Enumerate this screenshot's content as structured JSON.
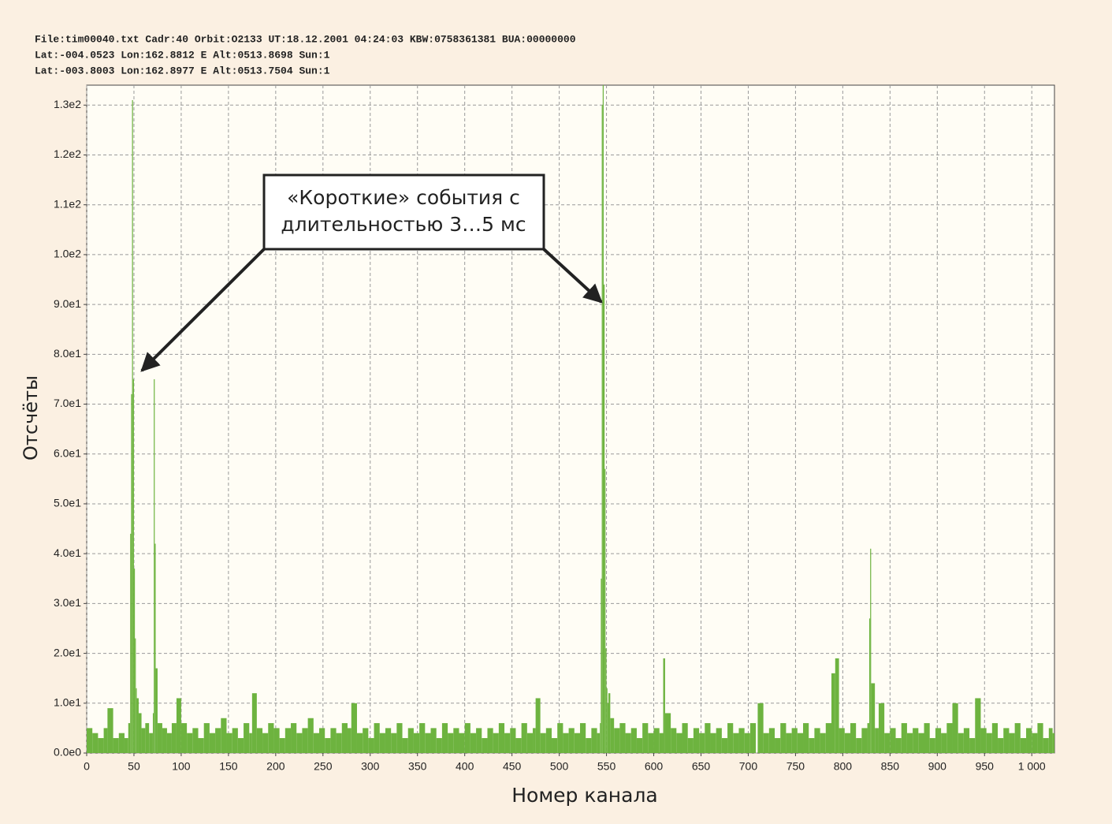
{
  "chart_data": {
    "type": "bar",
    "header": [
      "File:tim00040.txt Cadr:40 Orbit:O2133 UT:18.12.2001 04:24:03 KBW:0758361381 BUA:00000000",
      "Lat:-004.0523 Lon:162.8812 E Alt:0513.8698 Sun:1",
      "Lat:-003.8003 Lon:162.8977 E Alt:0513.7504 Sun:1"
    ],
    "ylabel": "Отсчёты",
    "xlabel": "Номер канала",
    "annotation": [
      "«Короткие» события с",
      "длительностью 3…5 мс"
    ],
    "color": "#6db33f",
    "grid": true,
    "xlim": [
      0,
      1024
    ],
    "ylim": [
      0,
      134
    ],
    "xticks": [
      0,
      50,
      100,
      150,
      200,
      250,
      300,
      350,
      400,
      450,
      500,
      550,
      600,
      650,
      700,
      750,
      800,
      850,
      900,
      950,
      {
        "value": 1000,
        "label": "1 000"
      }
    ],
    "yticks": [
      {
        "value": 0,
        "label": "0.0e0"
      },
      {
        "value": 10,
        "label": "1.0e1"
      },
      {
        "value": 20,
        "label": "2.0e1"
      },
      {
        "value": 30,
        "label": "3.0e1"
      },
      {
        "value": 40,
        "label": "4.0e1"
      },
      {
        "value": 50,
        "label": "5.0e1"
      },
      {
        "value": 60,
        "label": "6.0e1"
      },
      {
        "value": 70,
        "label": "7.0e1"
      },
      {
        "value": 80,
        "label": "8.0e1"
      },
      {
        "value": 90,
        "label": "9.0e1"
      },
      {
        "value": 100,
        "label": "1.0e2"
      },
      {
        "value": 110,
        "label": "1.1e2"
      },
      {
        "value": 120,
        "label": "1.2e2"
      },
      {
        "value": 130,
        "label": "1.3e2"
      }
    ],
    "x": [
      0,
      6,
      12,
      18,
      22,
      28,
      34,
      40,
      44,
      46,
      47,
      48,
      49,
      50,
      51,
      52,
      53,
      55,
      58,
      62,
      66,
      70,
      71,
      72,
      73,
      75,
      80,
      85,
      90,
      95,
      100,
      106,
      112,
      118,
      124,
      130,
      136,
      142,
      148,
      154,
      160,
      166,
      172,
      175,
      180,
      186,
      192,
      198,
      204,
      210,
      216,
      222,
      228,
      234,
      240,
      246,
      252,
      258,
      264,
      270,
      276,
      280,
      286,
      292,
      298,
      304,
      310,
      316,
      322,
      328,
      334,
      340,
      346,
      352,
      358,
      364,
      370,
      376,
      382,
      388,
      394,
      400,
      406,
      412,
      418,
      424,
      430,
      436,
      442,
      448,
      454,
      460,
      466,
      472,
      475,
      480,
      486,
      492,
      498,
      504,
      510,
      516,
      522,
      528,
      534,
      540,
      543,
      544,
      545,
      546,
      547,
      548,
      549,
      550,
      551,
      552,
      554,
      558,
      564,
      570,
      576,
      582,
      588,
      594,
      600,
      606,
      610,
      612,
      618,
      624,
      630,
      636,
      642,
      648,
      654,
      660,
      666,
      672,
      678,
      684,
      690,
      696,
      702,
      710,
      716,
      722,
      728,
      734,
      740,
      746,
      752,
      758,
      764,
      770,
      776,
      782,
      788,
      792,
      796,
      802,
      808,
      814,
      820,
      826,
      828,
      829,
      830,
      834,
      838,
      844,
      850,
      856,
      862,
      868,
      874,
      880,
      886,
      892,
      898,
      904,
      910,
      916,
      922,
      928,
      934,
      940,
      946,
      952,
      958,
      964,
      970,
      976,
      982,
      988,
      994,
      1000,
      1006,
      1012,
      1018,
      1022
    ],
    "values": [
      5,
      4,
      3,
      5,
      9,
      3,
      4,
      3,
      6,
      44,
      72,
      131,
      75,
      37,
      23,
      13,
      11,
      8,
      5,
      6,
      4,
      8,
      75,
      42,
      17,
      6,
      5,
      4,
      6,
      11,
      6,
      4,
      5,
      3,
      6,
      4,
      5,
      7,
      4,
      5,
      3,
      6,
      4,
      12,
      5,
      4,
      6,
      5,
      3,
      5,
      6,
      4,
      5,
      7,
      4,
      5,
      3,
      5,
      4,
      6,
      5,
      10,
      4,
      5,
      3,
      6,
      4,
      5,
      4,
      6,
      3,
      5,
      4,
      6,
      4,
      5,
      3,
      6,
      4,
      5,
      4,
      6,
      4,
      5,
      3,
      5,
      4,
      6,
      4,
      5,
      3,
      6,
      4,
      5,
      11,
      4,
      5,
      3,
      6,
      4,
      5,
      4,
      6,
      3,
      5,
      4,
      6,
      35,
      130,
      134,
      94,
      57,
      21,
      13,
      10,
      12,
      7,
      5,
      6,
      4,
      5,
      3,
      6,
      4,
      5,
      4,
      19,
      8,
      5,
      4,
      6,
      3,
      5,
      4,
      6,
      4,
      5,
      3,
      6,
      4,
      5,
      4,
      6,
      10,
      4,
      5,
      3,
      6,
      4,
      5,
      4,
      6,
      3,
      5,
      4,
      6,
      16,
      19,
      5,
      4,
      6,
      3,
      5,
      6,
      27,
      41,
      14,
      5,
      10,
      4,
      5,
      3,
      6,
      4,
      5,
      4,
      6,
      3,
      5,
      4,
      6,
      10,
      4,
      5,
      3,
      11,
      5,
      4,
      6,
      3,
      5,
      4,
      6,
      3,
      5,
      4,
      6,
      3,
      5,
      4
    ]
  }
}
